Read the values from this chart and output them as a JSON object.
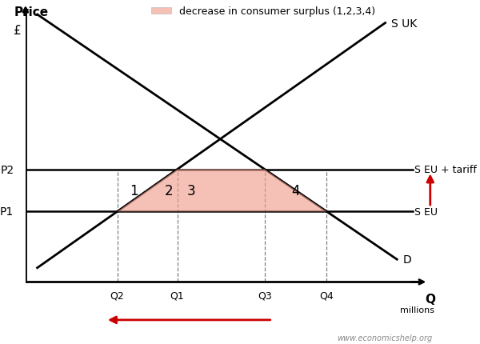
{
  "figsize": [
    6.0,
    4.31
  ],
  "dpi": 100,
  "bg_color": "#ffffff",
  "axis_color": "#000000",
  "line_color": "#000000",
  "shaded_color": "#f0a090",
  "shaded_alpha": 0.65,
  "legend_patch_color": "#f0a090",
  "P1": 2.5,
  "P2": 4.0,
  "x_min": 0,
  "x_max": 10.5,
  "y_min": 0,
  "y_max": 10.0,
  "demand_x0": 0.3,
  "demand_y0": 9.5,
  "demand_x1": 9.5,
  "demand_y1": 0.8,
  "supply_uk_x0": 0.3,
  "supply_uk_y0": 0.5,
  "supply_uk_x1": 9.2,
  "supply_uk_y1": 9.2,
  "s_eu_label": "S EU",
  "s_eu_tariff_label": "S EU + tariff",
  "s_uk_label": "S UK",
  "d_label": "D",
  "p1_label": "P1",
  "p2_label": "P2",
  "q1_label": "Q1",
  "q2_label": "Q2",
  "q3_label": "Q3",
  "q4_label": "Q4",
  "price_label": "Price",
  "currency_label": "£",
  "q_label": "Q",
  "q_sub_label": "millions",
  "legend_text": "decrease in consumer surplus (1,2,3,4)",
  "label1": "1",
  "label2": "2",
  "label3": "3",
  "label4": "4",
  "watermark": "www.economicshelp.org",
  "arrow_color": "#cc0000"
}
